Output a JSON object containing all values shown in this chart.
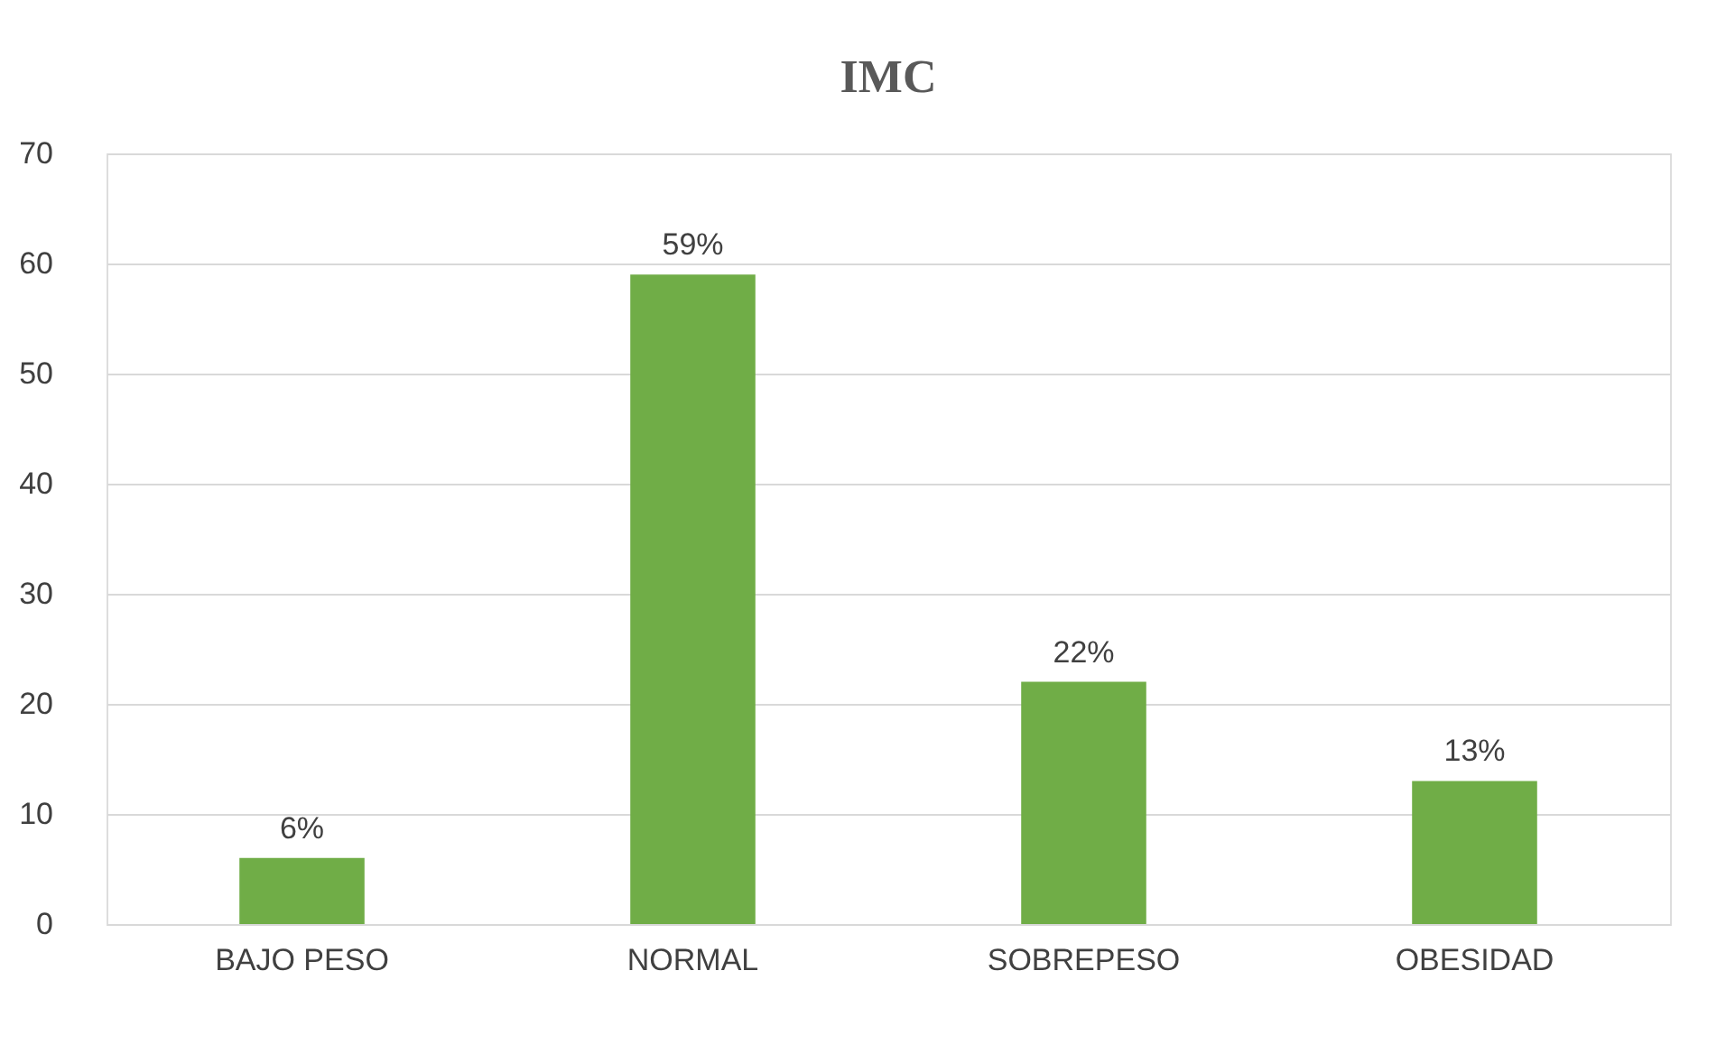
{
  "chart_data": {
    "type": "bar",
    "title": "IMC",
    "categories": [
      "BAJO PESO",
      "NORMAL",
      "SOBREPESO",
      "OBESIDAD"
    ],
    "values": [
      6,
      59,
      22,
      13
    ],
    "value_labels": [
      "6%",
      "59%",
      "22%",
      "13%"
    ],
    "color": "#70ad47",
    "ylim": [
      0,
      70
    ],
    "yticks": [
      0,
      10,
      20,
      30,
      40,
      50,
      60,
      70
    ],
    "grid": "y"
  }
}
